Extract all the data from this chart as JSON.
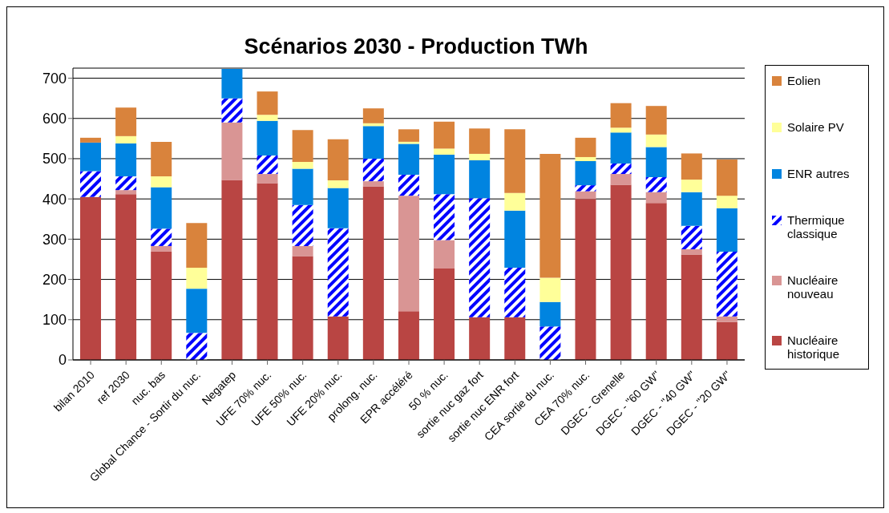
{
  "chart_data": {
    "type": "bar",
    "title": "Scénarios 2030 - Production TWh",
    "stacked": true,
    "categories": [
      "bilan 2010",
      "ref 2030",
      "nuc. bas",
      "Global Chance - Sortir du nuc.",
      "Negatep",
      "UFE 70% nuc.",
      "UFE 50% nuc.",
      "UFE 20% nuc.",
      "prolong. nuc.",
      "EPR accéléré",
      "50 % nuc.",
      "sortie nuc gaz fort",
      "sortie nuc ENR fort",
      "CEA sortie du nuc.",
      "CEA 70% nuc.",
      "DGEC - Grenelle",
      "DGEC - \"60 GW\"",
      "DGEC - \"40 GW\"",
      "DGEC - \"20 GW\""
    ],
    "series": [
      {
        "name": "Nucléaire historique",
        "color": "#b94543",
        "values": [
          405,
          412,
          269,
          0,
          447,
          439,
          258,
          108,
          431,
          121,
          227,
          106,
          106,
          0,
          400,
          435,
          390,
          262,
          94
        ]
      },
      {
        "name": "Nucléaire nouveau",
        "color": "#d99594",
        "values": [
          0,
          10,
          14,
          0,
          143,
          23,
          25,
          0,
          13,
          287,
          71,
          0,
          0,
          0,
          19,
          27,
          27,
          13,
          14
        ]
      },
      {
        "name": "Thermique classique",
        "color": "#0000ff",
        "values": [
          64,
          34,
          43,
          67,
          60,
          46,
          102,
          219,
          56,
          52,
          114,
          296,
          123,
          83,
          15,
          26,
          37,
          58,
          161
        ]
      },
      {
        "name": "ENR autres",
        "color": "#0084e0",
        "values": [
          71,
          82,
          103,
          110,
          73,
          86,
          90,
          100,
          81,
          77,
          98,
          94,
          142,
          61,
          60,
          77,
          75,
          84,
          108
        ]
      },
      {
        "name": "Solaire PV",
        "color": "#ffff99",
        "values": [
          0,
          18,
          27,
          52,
          0,
          15,
          17,
          19,
          7,
          5,
          15,
          16,
          44,
          60,
          10,
          12,
          31,
          31,
          31
        ]
      },
      {
        "name": "Eolien",
        "color": "#d9833c",
        "values": [
          12,
          71,
          86,
          111,
          0,
          58,
          79,
          102,
          37,
          31,
          67,
          63,
          158,
          308,
          48,
          61,
          71,
          65,
          90
        ]
      }
    ],
    "ylim": [
      0,
      725
    ],
    "yticks": [
      0,
      100,
      200,
      300,
      400,
      500,
      600,
      700
    ],
    "grid": "y",
    "legend": "right"
  }
}
